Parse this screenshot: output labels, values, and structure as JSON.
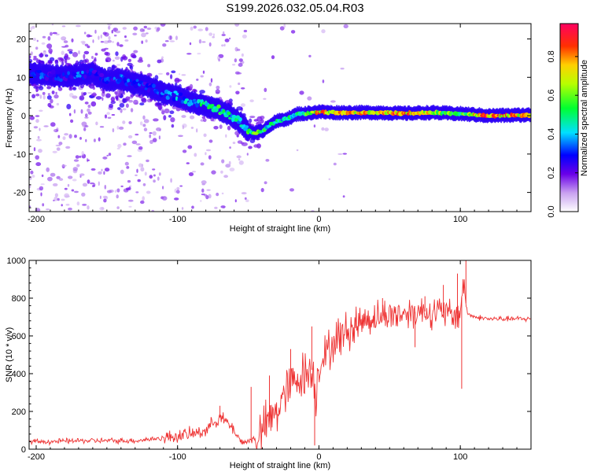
{
  "title": "S199.2026.032.05.04.R03",
  "chart_data": [
    {
      "type": "heatmap",
      "title": "",
      "xlabel": "Height of straight line (km)",
      "ylabel": "Frequency (Hz)",
      "xlim": [
        -205,
        150
      ],
      "ylim": [
        -25,
        24
      ],
      "xticks": [
        -200,
        -100,
        0,
        100
      ],
      "yticks": [
        -20,
        -10,
        0,
        10,
        20
      ],
      "ridge": {
        "x": [
          -200,
          -190,
          -180,
          -170,
          -160,
          -150,
          -140,
          -130,
          -120,
          -110,
          -100,
          -90,
          -80,
          -70,
          -60,
          -55,
          -50,
          -45,
          -40,
          -35,
          -30,
          -25,
          -20,
          -15,
          -10,
          -5,
          0,
          10,
          20,
          40,
          60,
          80,
          100,
          120,
          150
        ],
        "freq": [
          11,
          10.5,
          10.2,
          10.5,
          11,
          9,
          9.5,
          8.5,
          7.5,
          6,
          5,
          3.5,
          2.5,
          1.5,
          -0.5,
          -2,
          -4,
          -4.5,
          -4,
          -2.5,
          -1.5,
          -1,
          -0.5,
          0.5,
          0.5,
          0.8,
          1,
          0.8,
          0.8,
          0.8,
          0.6,
          0.8,
          0.5,
          0,
          0.2
        ],
        "amplitude": [
          0.35,
          0.3,
          0.3,
          0.35,
          0.3,
          0.3,
          0.35,
          0.35,
          0.3,
          0.35,
          0.4,
          0.45,
          0.5,
          0.55,
          0.45,
          0.5,
          0.55,
          0.6,
          0.55,
          0.5,
          0.5,
          0.45,
          0.5,
          0.55,
          0.6,
          0.7,
          0.85,
          0.75,
          0.8,
          0.8,
          0.85,
          0.75,
          0.6,
          0.9,
          0.75
        ]
      },
      "colorbar": {
        "label": "Normalized spectral amplitude",
        "range": [
          0,
          0.97
        ],
        "ticks": [
          0.0,
          0.2,
          0.4,
          0.6,
          0.8
        ],
        "tick_labels": [
          "0.0",
          "0.2",
          "0.4",
          "0.6",
          "0.8"
        ]
      }
    },
    {
      "type": "line",
      "title": "",
      "xlabel": "Height of straight line (km)",
      "ylabel": "SNR (10 * v/v)",
      "xlim": [
        -205,
        150
      ],
      "ylim": [
        0,
        1000
      ],
      "xticks": [
        -200,
        -100,
        0,
        100
      ],
      "yticks": [
        0,
        200,
        400,
        600,
        800,
        1000
      ],
      "series": [
        {
          "name": "SNR",
          "color": "#ee3333",
          "x": [
            -205,
            -190,
            -170,
            -150,
            -130,
            -110,
            -100,
            -90,
            -80,
            -75,
            -70,
            -65,
            -60,
            -55,
            -50,
            -45,
            -40,
            -35,
            -30,
            -25,
            -20,
            -15,
            -10,
            -5,
            -2,
            0,
            5,
            10,
            15,
            20,
            30,
            40,
            50,
            60,
            70,
            80,
            90,
            95,
            100,
            102,
            105,
            110,
            120,
            130,
            140,
            150
          ],
          "y": [
            40,
            40,
            45,
            45,
            45,
            60,
            70,
            80,
            100,
            140,
            170,
            140,
            100,
            40,
            40,
            60,
            90,
            150,
            200,
            280,
            330,
            380,
            400,
            420,
            300,
            450,
            500,
            560,
            600,
            620,
            680,
            700,
            710,
            720,
            730,
            730,
            720,
            700,
            730,
            880,
            720,
            700,
            690,
            690,
            690,
            690
          ],
          "spikes": [
            {
              "x": -70,
              "y": 230
            },
            {
              "x": -48,
              "y": 330
            },
            {
              "x": -35,
              "y": 390
            },
            {
              "x": -20,
              "y": 530
            },
            {
              "x": -5,
              "y": 650
            },
            {
              "x": -3,
              "y": 20
            },
            {
              "x": 45,
              "y": 800
            },
            {
              "x": 68,
              "y": 540
            },
            {
              "x": 75,
              "y": 810
            },
            {
              "x": 88,
              "y": 870
            },
            {
              "x": 98,
              "y": 930
            },
            {
              "x": 101,
              "y": 320
            },
            {
              "x": 104,
              "y": 1000
            }
          ]
        }
      ]
    }
  ]
}
